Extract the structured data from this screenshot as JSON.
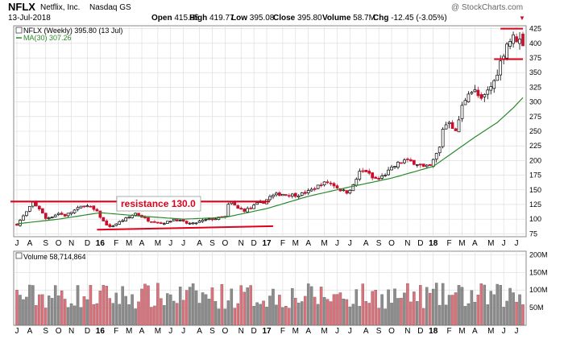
{
  "header": {
    "symbol": "NFLX",
    "company": "Netflix, Inc.",
    "exchange": "Nasdaq GS",
    "date": "13-Jul-2018",
    "watermark": "@ StockCharts.com",
    "stats": [
      {
        "label": "Open",
        "value": "415.95"
      },
      {
        "label": "High",
        "value": "419.77"
      },
      {
        "label": "Low",
        "value": "395.08"
      },
      {
        "label": "Close",
        "value": "395.80"
      },
      {
        "label": "Volume",
        "value": "58.7M"
      },
      {
        "label": "Chg",
        "value": "-12.45 (-3.05%)"
      }
    ],
    "chg_arrow": "▼"
  },
  "price_panel": {
    "legend": [
      {
        "text": "NFLX (Weekly) 395.80 (13 Jul)",
        "color": "#000000"
      },
      {
        "text": "MA(30) 307.26",
        "color": "#2a8a2a"
      }
    ],
    "annotation": "resistance 130.0",
    "y_ticks": [
      75,
      100,
      125,
      150,
      175,
      200,
      225,
      250,
      275,
      300,
      325,
      350,
      375,
      400,
      425
    ]
  },
  "volume_panel": {
    "legend": "Volume 58,714,864",
    "y_ticks": [
      {
        "label": "200M",
        "value": 200
      },
      {
        "label": "150M",
        "value": 150
      },
      {
        "label": "100M",
        "value": 100
      },
      {
        "label": "50M",
        "value": 50
      }
    ]
  },
  "x_axis": {
    "labels": [
      {
        "text": "J",
        "week": 0
      },
      {
        "text": "A",
        "week": 4
      },
      {
        "text": "S",
        "week": 9
      },
      {
        "text": "O",
        "week": 13
      },
      {
        "text": "N",
        "week": 17
      },
      {
        "text": "D",
        "week": 22
      },
      {
        "text": "16",
        "week": 26,
        "bold": true
      },
      {
        "text": "F",
        "week": 31
      },
      {
        "text": "M",
        "week": 35
      },
      {
        "text": "A",
        "week": 39
      },
      {
        "text": "M",
        "week": 44
      },
      {
        "text": "J",
        "week": 48
      },
      {
        "text": "J",
        "week": 52
      },
      {
        "text": "A",
        "week": 57
      },
      {
        "text": "S",
        "week": 61
      },
      {
        "text": "O",
        "week": 65
      },
      {
        "text": "N",
        "week": 70
      },
      {
        "text": "D",
        "week": 74
      },
      {
        "text": "17",
        "week": 78,
        "bold": true
      },
      {
        "text": "F",
        "week": 83
      },
      {
        "text": "M",
        "week": 87
      },
      {
        "text": "A",
        "week": 91
      },
      {
        "text": "M",
        "week": 96
      },
      {
        "text": "J",
        "week": 100
      },
      {
        "text": "J",
        "week": 104
      },
      {
        "text": "A",
        "week": 109
      },
      {
        "text": "S",
        "week": 113
      },
      {
        "text": "O",
        "week": 117
      },
      {
        "text": "N",
        "week": 122
      },
      {
        "text": "D",
        "week": 126
      },
      {
        "text": "18",
        "week": 130,
        "bold": true
      },
      {
        "text": "F",
        "week": 135
      },
      {
        "text": "M",
        "week": 139
      },
      {
        "text": "A",
        "week": 143
      },
      {
        "text": "M",
        "week": 148
      },
      {
        "text": "J",
        "week": 152
      },
      {
        "text": "J",
        "week": 156
      }
    ]
  },
  "colors": {
    "up": "#000000",
    "down": "#c8102e",
    "ma": "#2a8a2a",
    "annotation": "#e0001b",
    "grid": "#d9d9d9",
    "volume_up": "#8c8c8c",
    "volume_down": "#e0707a"
  },
  "chart_data": {
    "type": "candlestick",
    "period": "weekly",
    "weeks": 159,
    "price_anchors": [
      [
        0,
        91
      ],
      [
        3,
        112
      ],
      [
        5,
        128
      ],
      [
        7,
        118
      ],
      [
        9,
        101
      ],
      [
        11,
        105
      ],
      [
        13,
        110
      ],
      [
        15,
        106
      ],
      [
        17,
        112
      ],
      [
        19,
        118
      ],
      [
        21,
        124
      ],
      [
        23,
        120
      ],
      [
        25,
        112
      ],
      [
        27,
        96
      ],
      [
        29,
        86
      ],
      [
        31,
        92
      ],
      [
        33,
        98
      ],
      [
        35,
        103
      ],
      [
        37,
        110
      ],
      [
        39,
        104
      ],
      [
        41,
        98
      ],
      [
        43,
        96
      ],
      [
        45,
        93
      ],
      [
        47,
        95
      ],
      [
        49,
        100
      ],
      [
        51,
        97
      ],
      [
        53,
        93
      ],
      [
        55,
        92
      ],
      [
        57,
        96
      ],
      [
        59,
        99
      ],
      [
        61,
        100
      ],
      [
        63,
        102
      ],
      [
        65,
        104
      ],
      [
        66,
        124
      ],
      [
        67,
        128
      ],
      [
        69,
        118
      ],
      [
        71,
        115
      ],
      [
        73,
        119
      ],
      [
        75,
        126
      ],
      [
        77,
        129
      ],
      [
        79,
        138
      ],
      [
        81,
        142
      ],
      [
        83,
        143
      ],
      [
        85,
        142
      ],
      [
        87,
        141
      ],
      [
        89,
        143
      ],
      [
        91,
        147
      ],
      [
        93,
        153
      ],
      [
        95,
        160
      ],
      [
        97,
        163
      ],
      [
        99,
        158
      ],
      [
        101,
        150
      ],
      [
        103,
        146
      ],
      [
        105,
        157
      ],
      [
        107,
        180
      ],
      [
        109,
        182
      ],
      [
        111,
        170
      ],
      [
        113,
        168
      ],
      [
        115,
        177
      ],
      [
        117,
        186
      ],
      [
        119,
        195
      ],
      [
        121,
        200
      ],
      [
        123,
        198
      ],
      [
        125,
        195
      ],
      [
        127,
        188
      ],
      [
        129,
        190
      ],
      [
        130,
        200
      ],
      [
        132,
        222
      ],
      [
        133,
        255
      ],
      [
        135,
        268
      ],
      [
        137,
        248
      ],
      [
        139,
        292
      ],
      [
        141,
        318
      ],
      [
        143,
        318
      ],
      [
        145,
        302
      ],
      [
        147,
        318
      ],
      [
        149,
        335
      ],
      [
        151,
        368
      ],
      [
        153,
        400
      ],
      [
        155,
        410
      ],
      [
        157,
        405
      ],
      [
        158,
        396
      ]
    ],
    "moving_average_30w": [
      [
        0,
        92
      ],
      [
        13,
        100
      ],
      [
        26,
        111
      ],
      [
        39,
        105
      ],
      [
        52,
        100
      ],
      [
        65,
        103
      ],
      [
        78,
        118
      ],
      [
        91,
        139
      ],
      [
        104,
        155
      ],
      [
        117,
        170
      ],
      [
        130,
        190
      ],
      [
        143,
        240
      ],
      [
        150,
        265
      ],
      [
        155,
        290
      ],
      [
        158,
        307.26
      ]
    ],
    "resistance": {
      "value": 130.0,
      "from_week": -2,
      "to_week": 79,
      "label": "resistance 130.0"
    },
    "support_trendline": {
      "from": [
        25,
        82
      ],
      "to": [
        80,
        88
      ]
    },
    "recent_high_line": {
      "value": 425,
      "from_week": 151,
      "to_week": 158
    },
    "recent_low_line": {
      "value": 373,
      "from_week": 149,
      "to_week": 158
    },
    "last": {
      "open": 415.95,
      "high": 419.77,
      "low": 395.08,
      "close": 395.8,
      "volume_m": 58.7
    },
    "ylim": [
      70,
      430
    ],
    "volume_ylim": [
      0,
      210
    ],
    "volume_scale_m": [
      45,
      120
    ]
  }
}
